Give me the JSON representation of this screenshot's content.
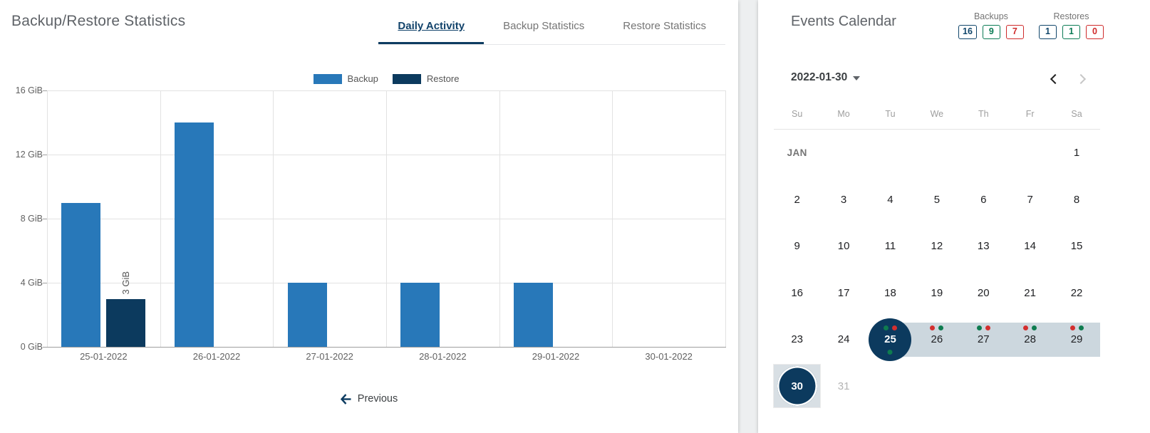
{
  "left_panel": {
    "title": "Backup/Restore Statistics",
    "tabs": [
      {
        "label": "Daily Activity",
        "active": true
      },
      {
        "label": "Backup Statistics",
        "active": false
      },
      {
        "label": "Restore Statistics",
        "active": false
      }
    ],
    "previous_label": "Previous"
  },
  "chart_data": {
    "type": "bar",
    "title": "Daily Activity",
    "categories": [
      "25-01-2022",
      "26-01-2022",
      "27-01-2022",
      "28-01-2022",
      "29-01-2022",
      "30-01-2022"
    ],
    "series": [
      {
        "name": "Backup",
        "color": "#2878b9",
        "values": [
          9,
          14,
          4,
          4,
          4,
          null
        ]
      },
      {
        "name": "Restore",
        "color": "#0c3a5e",
        "values": [
          3,
          null,
          null,
          null,
          null,
          null
        ]
      }
    ],
    "unit": "GiB",
    "ylim": [
      0,
      16
    ],
    "yticks": [
      0,
      4,
      8,
      12,
      16
    ],
    "ytick_labels": [
      "0 GiB",
      "4 GiB",
      "8 GiB",
      "12 GiB",
      "16 GiB"
    ],
    "bar_labels": [
      {
        "series_index": 1,
        "category_index": 0,
        "text": "3 GiB"
      }
    ],
    "legend_position": "top-center",
    "grid": true
  },
  "right_panel": {
    "title": "Events Calendar",
    "summary": [
      {
        "label": "Backups",
        "counts": [
          {
            "value": "16",
            "color": "#11466b"
          },
          {
            "value": "9",
            "color": "#0b7b55"
          },
          {
            "value": "7",
            "color": "#cf2b2b"
          }
        ]
      },
      {
        "label": "Restores",
        "counts": [
          {
            "value": "1",
            "color": "#11466b"
          },
          {
            "value": "1",
            "color": "#0b7b55"
          },
          {
            "value": "0",
            "color": "#cf2b2b"
          }
        ]
      }
    ],
    "month_selector": "2022-01-30",
    "nav": {
      "prev_enabled": true,
      "next_enabled": false
    },
    "calendar": {
      "weekdays": [
        "Su",
        "Mo",
        "Tu",
        "We",
        "Th",
        "Fr",
        "Sa"
      ],
      "dot_colors": {
        "green": "#0e7c4f",
        "red": "#d32f2f"
      },
      "range_color": "#ccd7de",
      "selected_color": "#0c3a5e",
      "today_color": "#0c3a5e",
      "rows": [
        [
          {
            "text": "JAN",
            "month_label": true
          },
          null,
          null,
          null,
          null,
          null,
          {
            "text": "1"
          }
        ],
        [
          {
            "text": "2"
          },
          {
            "text": "3"
          },
          {
            "text": "4"
          },
          {
            "text": "5"
          },
          {
            "text": "6"
          },
          {
            "text": "7"
          },
          {
            "text": "8"
          }
        ],
        [
          {
            "text": "9"
          },
          {
            "text": "10"
          },
          {
            "text": "11"
          },
          {
            "text": "12"
          },
          {
            "text": "13"
          },
          {
            "text": "14"
          },
          {
            "text": "15"
          }
        ],
        [
          {
            "text": "16"
          },
          {
            "text": "17"
          },
          {
            "text": "18"
          },
          {
            "text": "19"
          },
          {
            "text": "20"
          },
          {
            "text": "21"
          },
          {
            "text": "22"
          }
        ],
        [
          {
            "text": "23"
          },
          {
            "text": "24"
          },
          {
            "text": "25",
            "selected": true,
            "range_start": true,
            "dots": [
              "green",
              "red"
            ],
            "dot_below": "green"
          },
          {
            "text": "26",
            "in_range": true,
            "dots": [
              "red",
              "green"
            ]
          },
          {
            "text": "27",
            "in_range": true,
            "dots": [
              "green",
              "red"
            ]
          },
          {
            "text": "28",
            "in_range": true,
            "dots": [
              "red",
              "green"
            ]
          },
          {
            "text": "29",
            "in_range": true,
            "dots": [
              "red",
              "green"
            ]
          }
        ],
        [
          {
            "text": "30",
            "today": true
          },
          {
            "text": "31",
            "muted": true
          },
          null,
          null,
          null,
          null,
          null
        ]
      ]
    }
  }
}
